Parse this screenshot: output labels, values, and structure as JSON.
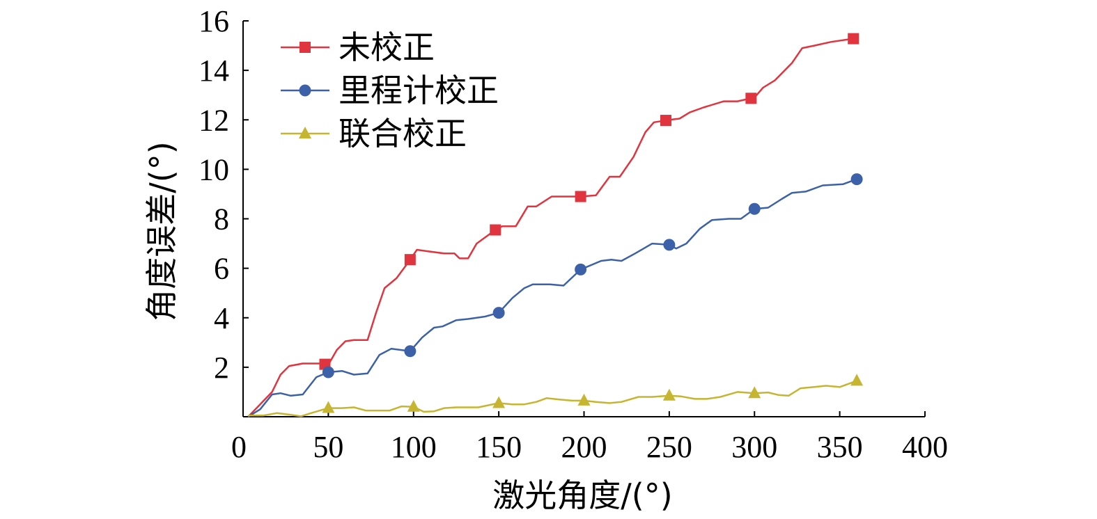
{
  "chart_data": {
    "type": "line",
    "xlabel": "激光角度/(°)",
    "ylabel": "角度误差/(°)",
    "xlim": [
      0,
      400
    ],
    "ylim": [
      0,
      16
    ],
    "xticks": [
      0,
      50,
      100,
      150,
      200,
      250,
      300,
      350,
      400
    ],
    "yticks": [
      2,
      4,
      6,
      8,
      10,
      12,
      14,
      16
    ],
    "grid": false,
    "legend_position": "top-left",
    "series": [
      {
        "name": "未校正",
        "color": "#e0343f",
        "marker": "square",
        "points": [
          [
            3,
            0
          ],
          [
            10,
            0.5
          ],
          [
            17,
            1.0
          ],
          [
            22,
            1.7
          ],
          [
            27,
            2.05
          ],
          [
            35,
            2.15
          ],
          [
            45,
            2.15
          ],
          [
            50,
            2.1
          ],
          [
            55,
            2.7
          ],
          [
            60,
            3.05
          ],
          [
            65,
            3.1
          ],
          [
            73,
            3.1
          ],
          [
            78,
            4.2
          ],
          [
            83,
            5.2
          ],
          [
            90,
            5.6
          ],
          [
            97,
            6.25
          ],
          [
            102,
            6.75
          ],
          [
            107,
            6.7
          ],
          [
            118,
            6.6
          ],
          [
            124,
            6.6
          ],
          [
            127,
            6.4
          ],
          [
            132,
            6.4
          ],
          [
            137,
            7.0
          ],
          [
            148,
            7.55
          ],
          [
            152,
            7.7
          ],
          [
            160,
            7.7
          ],
          [
            167,
            8.5
          ],
          [
            172,
            8.5
          ],
          [
            181,
            8.9
          ],
          [
            198,
            8.9
          ],
          [
            207,
            8.95
          ],
          [
            215,
            9.7
          ],
          [
            221,
            9.7
          ],
          [
            229,
            10.5
          ],
          [
            236,
            11.5
          ],
          [
            241,
            11.9
          ],
          [
            250,
            12.0
          ],
          [
            256,
            12.05
          ],
          [
            262,
            12.3
          ],
          [
            270,
            12.5
          ],
          [
            282,
            12.75
          ],
          [
            290,
            12.75
          ],
          [
            300,
            12.9
          ],
          [
            305,
            13.3
          ],
          [
            312,
            13.6
          ],
          [
            322,
            14.3
          ],
          [
            328,
            14.9
          ],
          [
            335,
            15.0
          ],
          [
            345,
            15.15
          ],
          [
            360,
            15.3
          ]
        ]
      },
      {
        "name": "里程计校正",
        "color": "#3c61a8",
        "marker": "circle",
        "points": [
          [
            3,
            0
          ],
          [
            10,
            0.3
          ],
          [
            17,
            0.9
          ],
          [
            22,
            0.95
          ],
          [
            28,
            0.85
          ],
          [
            35,
            0.9
          ],
          [
            43,
            1.6
          ],
          [
            50,
            1.8
          ],
          [
            58,
            1.85
          ],
          [
            65,
            1.7
          ],
          [
            73,
            1.75
          ],
          [
            80,
            2.5
          ],
          [
            87,
            2.75
          ],
          [
            98,
            2.65
          ],
          [
            105,
            3.2
          ],
          [
            112,
            3.6
          ],
          [
            117,
            3.65
          ],
          [
            125,
            3.9
          ],
          [
            132,
            3.95
          ],
          [
            142,
            4.05
          ],
          [
            150,
            4.2
          ],
          [
            158,
            4.8
          ],
          [
            165,
            5.2
          ],
          [
            170,
            5.35
          ],
          [
            180,
            5.35
          ],
          [
            188,
            5.3
          ],
          [
            198,
            5.95
          ],
          [
            210,
            6.3
          ],
          [
            216,
            6.35
          ],
          [
            222,
            6.3
          ],
          [
            230,
            6.6
          ],
          [
            240,
            7.0
          ],
          [
            250,
            6.95
          ],
          [
            254,
            6.8
          ],
          [
            260,
            7.0
          ],
          [
            268,
            7.6
          ],
          [
            275,
            7.95
          ],
          [
            285,
            8.0
          ],
          [
            292,
            8.0
          ],
          [
            300,
            8.4
          ],
          [
            308,
            8.45
          ],
          [
            316,
            8.8
          ],
          [
            322,
            9.05
          ],
          [
            330,
            9.1
          ],
          [
            340,
            9.35
          ],
          [
            352,
            9.4
          ],
          [
            360,
            9.6
          ]
        ]
      },
      {
        "name": "联合校正",
        "color": "#c6b530",
        "marker": "triangle",
        "points": [
          [
            3,
            0.05
          ],
          [
            12,
            0.05
          ],
          [
            20,
            0.15
          ],
          [
            28,
            0.08
          ],
          [
            34,
            0.02
          ],
          [
            40,
            0.15
          ],
          [
            50,
            0.35
          ],
          [
            58,
            0.35
          ],
          [
            65,
            0.38
          ],
          [
            72,
            0.25
          ],
          [
            80,
            0.25
          ],
          [
            86,
            0.25
          ],
          [
            93,
            0.42
          ],
          [
            100,
            0.4
          ],
          [
            106,
            0.2
          ],
          [
            112,
            0.22
          ],
          [
            118,
            0.35
          ],
          [
            125,
            0.38
          ],
          [
            138,
            0.38
          ],
          [
            150,
            0.55
          ],
          [
            158,
            0.5
          ],
          [
            165,
            0.5
          ],
          [
            172,
            0.6
          ],
          [
            178,
            0.75
          ],
          [
            185,
            0.7
          ],
          [
            193,
            0.65
          ],
          [
            200,
            0.65
          ],
          [
            207,
            0.6
          ],
          [
            215,
            0.55
          ],
          [
            222,
            0.6
          ],
          [
            232,
            0.8
          ],
          [
            240,
            0.8
          ],
          [
            250,
            0.85
          ],
          [
            257,
            0.82
          ],
          [
            265,
            0.72
          ],
          [
            272,
            0.72
          ],
          [
            280,
            0.8
          ],
          [
            290,
            1.0
          ],
          [
            300,
            0.95
          ],
          [
            308,
            0.98
          ],
          [
            314,
            0.88
          ],
          [
            320,
            0.85
          ],
          [
            327,
            1.15
          ],
          [
            335,
            1.2
          ],
          [
            342,
            1.25
          ],
          [
            350,
            1.2
          ],
          [
            360,
            1.45
          ]
        ]
      }
    ]
  }
}
